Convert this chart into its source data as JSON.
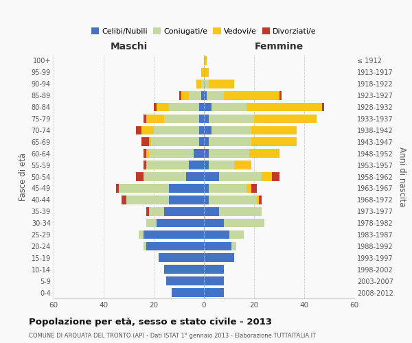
{
  "age_groups": [
    "0-4",
    "5-9",
    "10-14",
    "15-19",
    "20-24",
    "25-29",
    "30-34",
    "35-39",
    "40-44",
    "45-49",
    "50-54",
    "55-59",
    "60-64",
    "65-69",
    "70-74",
    "75-79",
    "80-84",
    "85-89",
    "90-94",
    "95-99",
    "100+"
  ],
  "birth_years": [
    "2008-2012",
    "2003-2007",
    "1998-2002",
    "1993-1997",
    "1988-1992",
    "1983-1987",
    "1978-1982",
    "1973-1977",
    "1968-1972",
    "1963-1967",
    "1958-1962",
    "1953-1957",
    "1948-1952",
    "1943-1947",
    "1938-1942",
    "1933-1937",
    "1928-1932",
    "1923-1927",
    "1918-1922",
    "1913-1917",
    "≤ 1912"
  ],
  "males": {
    "celibe": [
      13,
      15,
      16,
      18,
      23,
      24,
      19,
      16,
      14,
      14,
      7,
      6,
      4,
      2,
      2,
      2,
      2,
      1,
      0,
      0,
      0
    ],
    "coniugato": [
      0,
      0,
      0,
      0,
      1,
      2,
      4,
      6,
      17,
      20,
      17,
      17,
      18,
      19,
      18,
      14,
      12,
      5,
      1,
      0,
      0
    ],
    "vedovo": [
      0,
      0,
      0,
      0,
      0,
      0,
      0,
      0,
      0,
      0,
      0,
      0,
      1,
      1,
      5,
      7,
      5,
      3,
      2,
      1,
      0
    ],
    "divorziato": [
      0,
      0,
      0,
      0,
      0,
      0,
      0,
      1,
      2,
      1,
      3,
      1,
      1,
      3,
      2,
      1,
      1,
      1,
      0,
      0,
      0
    ]
  },
  "females": {
    "nubile": [
      8,
      8,
      8,
      12,
      11,
      10,
      8,
      6,
      2,
      2,
      6,
      2,
      2,
      2,
      3,
      2,
      3,
      1,
      0,
      0,
      0
    ],
    "coniugata": [
      0,
      0,
      0,
      0,
      2,
      6,
      16,
      17,
      19,
      15,
      17,
      10,
      16,
      17,
      16,
      18,
      14,
      7,
      2,
      0,
      0
    ],
    "vedova": [
      0,
      0,
      0,
      0,
      0,
      0,
      0,
      0,
      1,
      2,
      4,
      7,
      12,
      18,
      18,
      25,
      30,
      22,
      10,
      2,
      1
    ],
    "divorziata": [
      0,
      0,
      0,
      0,
      0,
      0,
      0,
      0,
      1,
      2,
      3,
      0,
      0,
      0,
      0,
      0,
      1,
      1,
      0,
      0,
      0
    ]
  },
  "colors": {
    "celibe": "#4472c4",
    "coniugato": "#c5d8a0",
    "vedovo": "#f5c518",
    "divorziato": "#c0392b"
  },
  "legend_labels": [
    "Celibi/Nubili",
    "Coniugati/e",
    "Vedovi/e",
    "Divorziati/e"
  ],
  "title": "Popolazione per età, sesso e stato civile - 2013",
  "subtitle": "COMUNE DI ARQUATA DEL TRONTO (AP) - Dati ISTAT 1° gennaio 2013 - Elaborazione TUTTAITALIA.IT",
  "label_maschi": "Maschi",
  "label_femmine": "Femmine",
  "ylabel_left": "Fasce di età",
  "ylabel_right": "Anni di nascita",
  "xlim": 60,
  "background_color": "#f9f9f9",
  "grid_color": "#cccccc"
}
